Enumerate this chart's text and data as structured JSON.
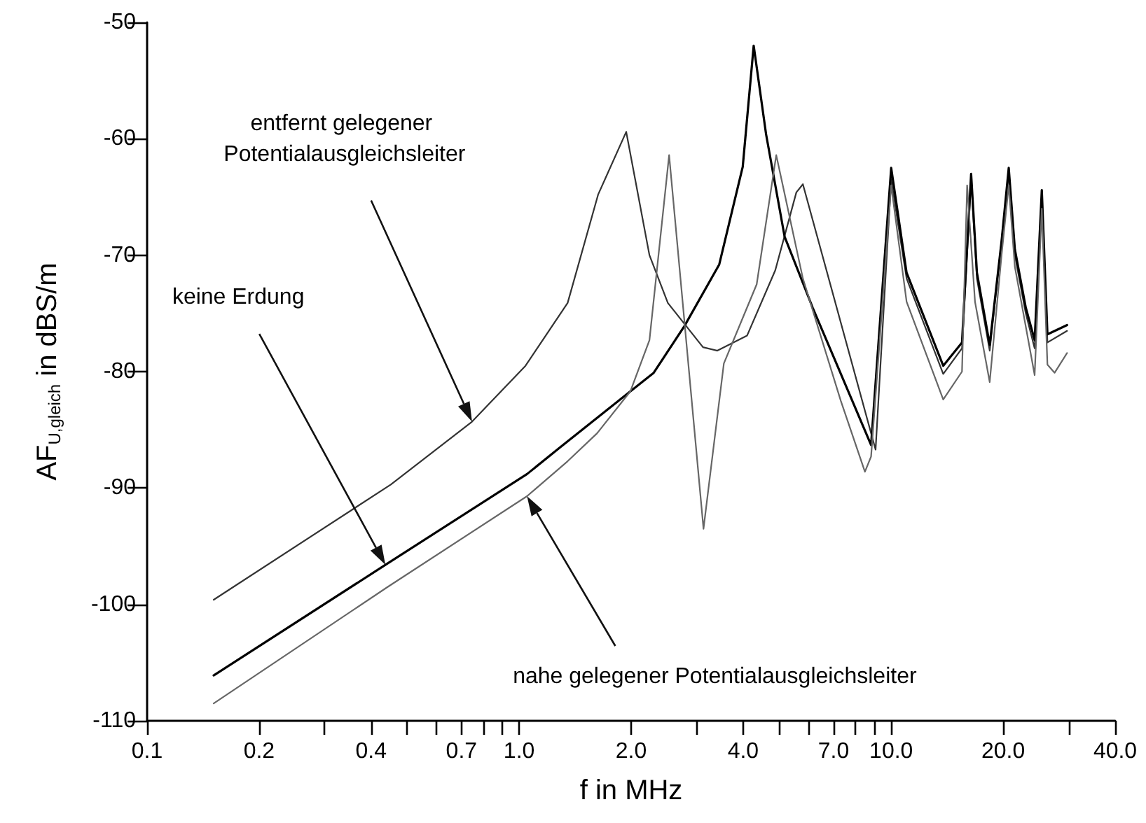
{
  "chart_data": {
    "type": "line",
    "xlabel": "f in MHz",
    "ylabel": "AF$_{U,gleich}$ in dBS/m",
    "log": "x",
    "grid": false,
    "marker": "none",
    "line_style": "solid",
    "xlim": [
      0.1,
      40
    ],
    "xticks": [
      0.1,
      0.2,
      {
        "value": 0.3,
        "label": null
      },
      0.4,
      {
        "value": 0.5,
        "label": null
      },
      {
        "value": 0.6,
        "label": null
      },
      0.7,
      {
        "value": 0.8,
        "label": null
      },
      {
        "value": 0.9,
        "label": null
      },
      {
        "value": 1,
        "label": "1.0"
      },
      {
        "value": 2,
        "label": "2.0"
      },
      {
        "value": 3,
        "label": null
      },
      {
        "value": 4,
        "label": "4.0"
      },
      {
        "value": 5,
        "label": null
      },
      {
        "value": 6,
        "label": null
      },
      {
        "value": 7,
        "label": "7.0"
      },
      {
        "value": 8,
        "label": null
      },
      {
        "value": 9,
        "label": null
      },
      {
        "value": 10,
        "label": "10.0"
      },
      {
        "value": 20,
        "label": "20.0"
      },
      {
        "value": 30,
        "label": null
      },
      {
        "value": 40,
        "label": "40.0"
      }
    ],
    "ylim": [
      -110,
      -50
    ],
    "yticks": [
      -110,
      -100,
      -90,
      -80,
      -70,
      -60,
      -50
    ],
    "series": [
      {
        "color": "#333333",
        "x": [
          0.151,
          0.452,
          0.747,
          1.04,
          1.35,
          1.63,
          1.94,
          2.24,
          2.51,
          3.12,
          3.41,
          4.1,
          4.88,
          5.56,
          5.79,
          9.08,
          10.0,
          11.0,
          13.8,
          15.5,
          16.4,
          17.0,
          18.4,
          19.8,
          20.7,
          21.5,
          23.0,
          24.3,
          25.4,
          26.3,
          29.7
        ],
        "values": [
          -99.6,
          -89.7,
          -84.3,
          -79.5,
          -74.1,
          -64.8,
          -59.4,
          -70.0,
          -74.1,
          -77.9,
          -78.2,
          -76.9,
          -71.3,
          -64.6,
          -63.9,
          -86.7,
          -63.5,
          -72,
          -80.2,
          -78,
          -63.5,
          -72,
          -78.2,
          -68.8,
          -63,
          -70,
          -75,
          -78,
          -65,
          -77.5,
          -76.5
        ]
      },
      {
        "color": "#000000",
        "x": [
          0.151,
          0.437,
          1.05,
          1.29,
          1.99,
          2.3,
          2.78,
          3.45,
          3.99,
          4.27,
          4.61,
          5.17,
          6.15,
          8.83,
          10.0,
          11.0,
          13.8,
          15.5,
          16.4,
          17.0,
          18.4,
          19.8,
          20.7,
          21.5,
          23.0,
          24.3,
          25.4,
          26.3,
          29.7
        ],
        "values": [
          -106.1,
          -96.6,
          -88.8,
          -86.5,
          -81.7,
          -80.1,
          -76.1,
          -70.8,
          -62.4,
          -52,
          -59.6,
          -68.4,
          -74.5,
          -86.3,
          -62.5,
          -71.5,
          -79.5,
          -77.5,
          -63,
          -71.5,
          -77.7,
          -68.8,
          -62.5,
          -69.5,
          -74.5,
          -77.3,
          -64.4,
          -76.8,
          -76
        ]
      },
      {
        "color": "#666666",
        "x": [
          0.151,
          0.443,
          1.05,
          1.35,
          1.62,
          1.99,
          2.24,
          2.53,
          3.13,
          3.55,
          4.35,
          4.91,
          5.79,
          7.32,
          8.5,
          8.83,
          10.0,
          11.0,
          13.8,
          15.5,
          16.0,
          16.8,
          18.4,
          19.8,
          20.7,
          21.5,
          24.3,
          25.4,
          26.3,
          27.5,
          29.7
        ],
        "values": [
          -108.5,
          -98.5,
          -90.7,
          -87.7,
          -85.3,
          -81.7,
          -77.3,
          -61.4,
          -93.5,
          -79.3,
          -72.5,
          -61.4,
          -72,
          -82.5,
          -88.6,
          -87.3,
          -64,
          -74,
          -82.4,
          -80,
          -64,
          -74,
          -80.9,
          -70,
          -64,
          -71,
          -80.3,
          -66,
          -79.4,
          -80.1,
          -78.4
        ]
      }
    ],
    "annotations": [
      "entfernt gelegener Potentialausgleichsleiter",
      "keine Erdung",
      "nahe gelegener Potentialausgleichsleiter"
    ]
  }
}
